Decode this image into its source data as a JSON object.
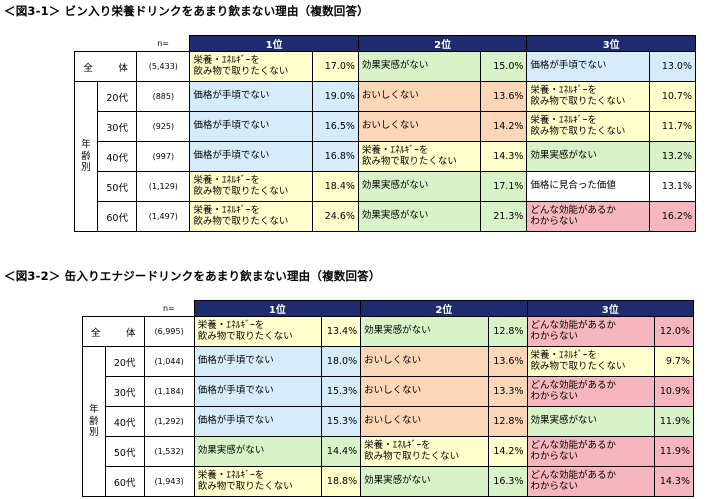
{
  "fig1": {
    "title": "＜図3-1＞ ビン入り栄養ドリンクをあまり飲まない理由（複数回答）",
    "n_label": "n=",
    "rank_labels": [
      "1位",
      "2位",
      "3位"
    ],
    "total": {
      "label": "全　体",
      "n": "(5,433)",
      "cells": [
        {
          "name": "栄養・ｴﾈﾙｷﾞｰを\n飲み物で取りたくない",
          "pct": "17.0%",
          "color": "yellow"
        },
        {
          "name": "効果実感がない",
          "pct": "15.0%",
          "color": "green"
        },
        {
          "name": "価格が手頃でない",
          "pct": "13.0%",
          "color": "blue"
        }
      ]
    },
    "group_label": "年\n齢\n別",
    "rows": [
      {
        "age": "20代",
        "n": "(885)",
        "cells": [
          {
            "name": "価格が手頃でない",
            "pct": "19.0%",
            "color": "blue"
          },
          {
            "name": "おいしくない",
            "pct": "13.6%",
            "color": "orange"
          },
          {
            "name": "栄養・ｴﾈﾙｷﾞｰを\n飲み物で取りたくない",
            "pct": "10.7%",
            "color": "yellow"
          }
        ]
      },
      {
        "age": "30代",
        "n": "(925)",
        "cells": [
          {
            "name": "価格が手頃でない",
            "pct": "16.5%",
            "color": "blue"
          },
          {
            "name": "おいしくない",
            "pct": "14.2%",
            "color": "orange"
          },
          {
            "name": "栄養・ｴﾈﾙｷﾞｰを\n飲み物で取りたくない",
            "pct": "11.7%",
            "color": "yellow"
          }
        ]
      },
      {
        "age": "40代",
        "n": "(997)",
        "cells": [
          {
            "name": "価格が手頃でない",
            "pct": "16.8%",
            "color": "blue"
          },
          {
            "name": "栄養・ｴﾈﾙｷﾞｰを\n飲み物で取りたくない",
            "pct": "14.3%",
            "color": "yellow"
          },
          {
            "name": "効果実感がない",
            "pct": "13.2%",
            "color": "green"
          }
        ]
      },
      {
        "age": "50代",
        "n": "(1,129)",
        "cells": [
          {
            "name": "栄養・ｴﾈﾙｷﾞｰを\n飲み物で取りたくない",
            "pct": "18.4%",
            "color": "yellow"
          },
          {
            "name": "効果実感がない",
            "pct": "17.1%",
            "color": "green"
          },
          {
            "name": "価格に見合った価値",
            "pct": "13.1%",
            "color": "none"
          }
        ]
      },
      {
        "age": "60代",
        "n": "(1,497)",
        "cells": [
          {
            "name": "栄養・ｴﾈﾙｷﾞｰを\n飲み物で取りたくない",
            "pct": "24.6%",
            "color": "yellow"
          },
          {
            "name": "効果実感がない",
            "pct": "21.3%",
            "color": "green"
          },
          {
            "name": "どんな効能があるか\nわからない",
            "pct": "16.2%",
            "color": "pink"
          }
        ]
      }
    ]
  },
  "fig2": {
    "title": "＜図3-2＞ 缶入りエナジードリンクをあまり飲まない理由（複数回答）",
    "n_label": "n=",
    "rank_labels": [
      "1位",
      "2位",
      "3位"
    ],
    "total": {
      "label": "全　体",
      "n": "(6,995)",
      "cells": [
        {
          "name": "栄養・ｴﾈﾙｷﾞｰを\n飲み物で取りたくない",
          "pct": "13.4%",
          "color": "yellow"
        },
        {
          "name": "効果実感がない",
          "pct": "12.8%",
          "color": "green"
        },
        {
          "name": "どんな効能があるか\nわからない",
          "pct": "12.0%",
          "color": "pink"
        }
      ]
    },
    "group_label": "年\n齢\n別",
    "rows": [
      {
        "age": "20代",
        "n": "(1,044)",
        "cells": [
          {
            "name": "価格が手頃でない",
            "pct": "18.0%",
            "color": "blue"
          },
          {
            "name": "おいしくない",
            "pct": "13.6%",
            "color": "orange"
          },
          {
            "name": "栄養・ｴﾈﾙｷﾞｰを\n飲み物で取りたくない",
            "pct": "9.7%",
            "color": "yellow"
          }
        ]
      },
      {
        "age": "30代",
        "n": "(1,184)",
        "cells": [
          {
            "name": "価格が手頃でない",
            "pct": "15.3%",
            "color": "blue"
          },
          {
            "name": "おいしくない",
            "pct": "13.3%",
            "color": "orange"
          },
          {
            "name": "どんな効能があるか\nわからない",
            "pct": "10.9%",
            "color": "pink"
          }
        ]
      },
      {
        "age": "40代",
        "n": "(1,292)",
        "cells": [
          {
            "name": "価格が手頃でない",
            "pct": "15.3%",
            "color": "blue"
          },
          {
            "name": "おいしくない",
            "pct": "12.8%",
            "color": "orange"
          },
          {
            "name": "効果実感がない",
            "pct": "11.9%",
            "color": "green"
          }
        ]
      },
      {
        "age": "50代",
        "n": "(1,532)",
        "cells": [
          {
            "name": "効果実感がない",
            "pct": "14.4%",
            "color": "green"
          },
          {
            "name": "栄養・ｴﾈﾙｷﾞｰを\n飲み物で取りたくない",
            "pct": "14.2%",
            "color": "yellow"
          },
          {
            "name": "どんな効能があるか\nわからない",
            "pct": "11.9%",
            "color": "pink"
          }
        ]
      },
      {
        "age": "60代",
        "n": "(1,943)",
        "cells": [
          {
            "name": "栄養・ｴﾈﾙｷﾞｰを\n飲み物で取りたくない",
            "pct": "18.8%",
            "color": "yellow"
          },
          {
            "name": "効果実感がない",
            "pct": "16.3%",
            "color": "green"
          },
          {
            "name": "どんな効能があるか\nわからない",
            "pct": "14.3%",
            "color": "pink"
          }
        ]
      }
    ]
  }
}
